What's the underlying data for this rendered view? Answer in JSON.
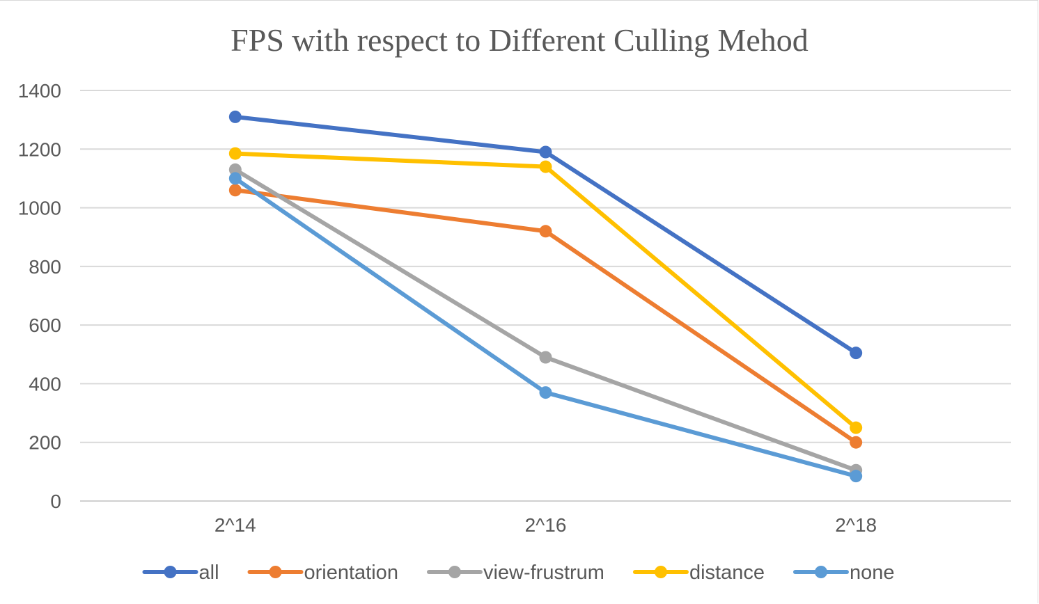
{
  "chart_data": {
    "type": "line",
    "title": "FPS with respect to Different Culling Mehod",
    "xlabel": "",
    "ylabel": "",
    "categories": [
      "2^14",
      "2^16",
      "2^18"
    ],
    "ylim": [
      0,
      1400
    ],
    "yticks": [
      0,
      200,
      400,
      600,
      800,
      1000,
      1200,
      1400
    ],
    "grid": true,
    "legend_position": "bottom",
    "series": [
      {
        "name": "all",
        "color": "#4472c4",
        "values": [
          1310,
          1190,
          505
        ]
      },
      {
        "name": "orientation",
        "color": "#ed7d31",
        "values": [
          1060,
          920,
          200
        ]
      },
      {
        "name": "view-frustrum",
        "color": "#a5a5a5",
        "values": [
          1130,
          490,
          105
        ]
      },
      {
        "name": "distance",
        "color": "#ffc000",
        "values": [
          1185,
          1140,
          250
        ]
      },
      {
        "name": "none",
        "color": "#5b9bd5",
        "values": [
          1100,
          370,
          85
        ]
      }
    ]
  }
}
